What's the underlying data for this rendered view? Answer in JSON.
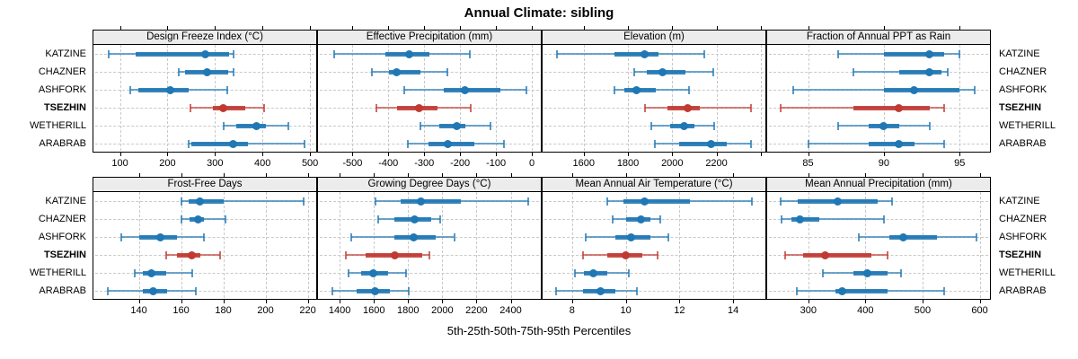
{
  "chart_data": {
    "type": "percentile-dotplot-trellis",
    "title": "Annual Climate: sibling",
    "xlabel": "5th-25th-50th-75th-95th Percentiles",
    "percentiles": [
      5,
      25,
      50,
      75,
      95
    ],
    "stations": [
      "KATZINE",
      "CHAZNER",
      "ASHFORK",
      "TSEZHIN",
      "WETHERILL",
      "ARABRAB"
    ],
    "highlighted_station": "TSEZHIN",
    "legend_position": "none",
    "grid": "dashed",
    "colors": {
      "series": "#1f77b4",
      "highlight": "#c03a32",
      "strip_bg": "#ececec",
      "grid": "#c9c9c9",
      "border": "#000000"
    },
    "panels": [
      {
        "id": "design-freeze-index",
        "title": "Design Freeze Index (°C)",
        "row": 0,
        "col": 0,
        "xlim": [
          44,
          513
        ],
        "ticks": [
          100,
          200,
          300,
          400,
          500
        ],
        "minor_ticks": [],
        "values": [
          [
            76,
            132,
            279,
            329,
            339
          ],
          [
            224,
            237,
            284,
            328,
            339
          ],
          [
            122,
            139,
            206,
            245,
            325
          ],
          [
            248,
            295,
            318,
            364,
            404
          ],
          [
            318,
            345,
            388,
            408,
            455
          ],
          [
            244,
            251,
            339,
            369,
            488
          ]
        ]
      },
      {
        "id": "effective-precipitation",
        "title": "Effective Precipitation (mm)",
        "row": 0,
        "col": 1,
        "xlim": [
          -596,
          25
        ],
        "ticks": [
          -500,
          -400,
          -300,
          -200,
          -100,
          0
        ],
        "minor_ticks": [],
        "values": [
          [
            -550,
            -408,
            -343,
            -285,
            -173
          ],
          [
            -445,
            -398,
            -377,
            -310,
            -236
          ],
          [
            -355,
            -245,
            -186,
            -88,
            -14
          ],
          [
            -432,
            -376,
            -315,
            -264,
            -170
          ],
          [
            -310,
            -258,
            -208,
            -185,
            -115
          ],
          [
            -346,
            -288,
            -233,
            -160,
            -77
          ]
        ]
      },
      {
        "id": "elevation",
        "title": "Elevation (m)",
        "row": 0,
        "col": 2,
        "xlim": [
          1414,
          2421
        ],
        "ticks": [
          1600,
          1800,
          2000,
          2200
        ],
        "minor_ticks": [
          2400
        ],
        "values": [
          [
            1478,
            1737,
            1873,
            1938,
            2143
          ],
          [
            1830,
            1885,
            1955,
            2060,
            2185
          ],
          [
            1740,
            1785,
            1840,
            1925,
            2075
          ],
          [
            1878,
            1978,
            2068,
            2126,
            2357
          ],
          [
            1905,
            1990,
            2055,
            2100,
            2190
          ],
          [
            1920,
            2030,
            2175,
            2245,
            2355
          ]
        ]
      },
      {
        "id": "fraction-ppt-rain",
        "title": "Fraction of Annual PPT as Rain",
        "row": 0,
        "col": 3,
        "xlim": [
          82.3,
          97
        ],
        "ticks": [
          85,
          90,
          95
        ],
        "minor_ticks": [],
        "values": [
          [
            87,
            90,
            93,
            94,
            95
          ],
          [
            88,
            91,
            93,
            93.8,
            94.2
          ],
          [
            84,
            90,
            92,
            95,
            96
          ],
          [
            83.2,
            88,
            91,
            93,
            94
          ],
          [
            87,
            89,
            90,
            91,
            93
          ],
          [
            85,
            89,
            91,
            92,
            94
          ]
        ]
      },
      {
        "id": "frost-free-days",
        "title": "Frost-Free Days",
        "row": 1,
        "col": 0,
        "xlim": [
          118.5,
          224
        ],
        "ticks": [
          140,
          160,
          180,
          200,
          220
        ],
        "minor_ticks": [],
        "values": [
          [
            160,
            163.5,
            169,
            180,
            218
          ],
          [
            160,
            164,
            168,
            171,
            181
          ],
          [
            131.5,
            140,
            150,
            158,
            171
          ],
          [
            153,
            158,
            165,
            169,
            178.5
          ],
          [
            138,
            142,
            146,
            153,
            165.5
          ],
          [
            125.5,
            142,
            147,
            153.5,
            167
          ]
        ]
      },
      {
        "id": "growing-degree-days",
        "title": "Growing Degree Days (°C)",
        "row": 1,
        "col": 1,
        "xlim": [
          1273,
          2576
        ],
        "ticks": [
          1400,
          1600,
          1800,
          2000,
          2200,
          2400
        ],
        "minor_ticks": [],
        "values": [
          [
            1610,
            1756,
            1874,
            2108,
            2500
          ],
          [
            1624,
            1718,
            1836,
            1935,
            1987
          ],
          [
            1466,
            1718,
            1831,
            1961,
            2069
          ],
          [
            1436,
            1553,
            1721,
            1883,
            1926
          ],
          [
            1454,
            1527,
            1596,
            1683,
            1788
          ],
          [
            1357,
            1501,
            1605,
            1692,
            1805
          ]
        ]
      },
      {
        "id": "mean-annual-air-temperature",
        "title": "Mean Annual Air Temperature (°C)",
        "row": 1,
        "col": 2,
        "xlim": [
          6.9,
          15.2
        ],
        "ticks": [
          8,
          10,
          12,
          14
        ],
        "minor_ticks": [],
        "values": [
          [
            9.3,
            9.9,
            10.7,
            12.4,
            14.7
          ],
          [
            9.5,
            10,
            10.55,
            10.9,
            11.3
          ],
          [
            8.5,
            9.6,
            10.2,
            10.9,
            11.6
          ],
          [
            8.4,
            9.3,
            10,
            10.6,
            11.2
          ],
          [
            8.1,
            8.45,
            8.8,
            9.3,
            10.1
          ],
          [
            7.4,
            8.4,
            9.05,
            9.6,
            10.4
          ]
        ]
      },
      {
        "id": "mean-annual-precipitation",
        "title": "Mean Annual Precipitation (mm)",
        "row": 1,
        "col": 3,
        "xlim": [
          228,
          618
        ],
        "ticks": [
          300,
          400,
          500,
          600
        ],
        "minor_ticks": [],
        "values": [
          [
            251,
            282,
            352,
            422,
            447
          ],
          [
            253,
            270,
            286,
            319,
            432
          ],
          [
            388,
            442,
            467,
            525,
            594
          ],
          [
            259,
            291,
            329,
            410,
            439
          ],
          [
            325,
            379,
            404,
            438,
            462
          ],
          [
            280,
            348,
            360,
            438,
            538
          ]
        ]
      }
    ]
  }
}
